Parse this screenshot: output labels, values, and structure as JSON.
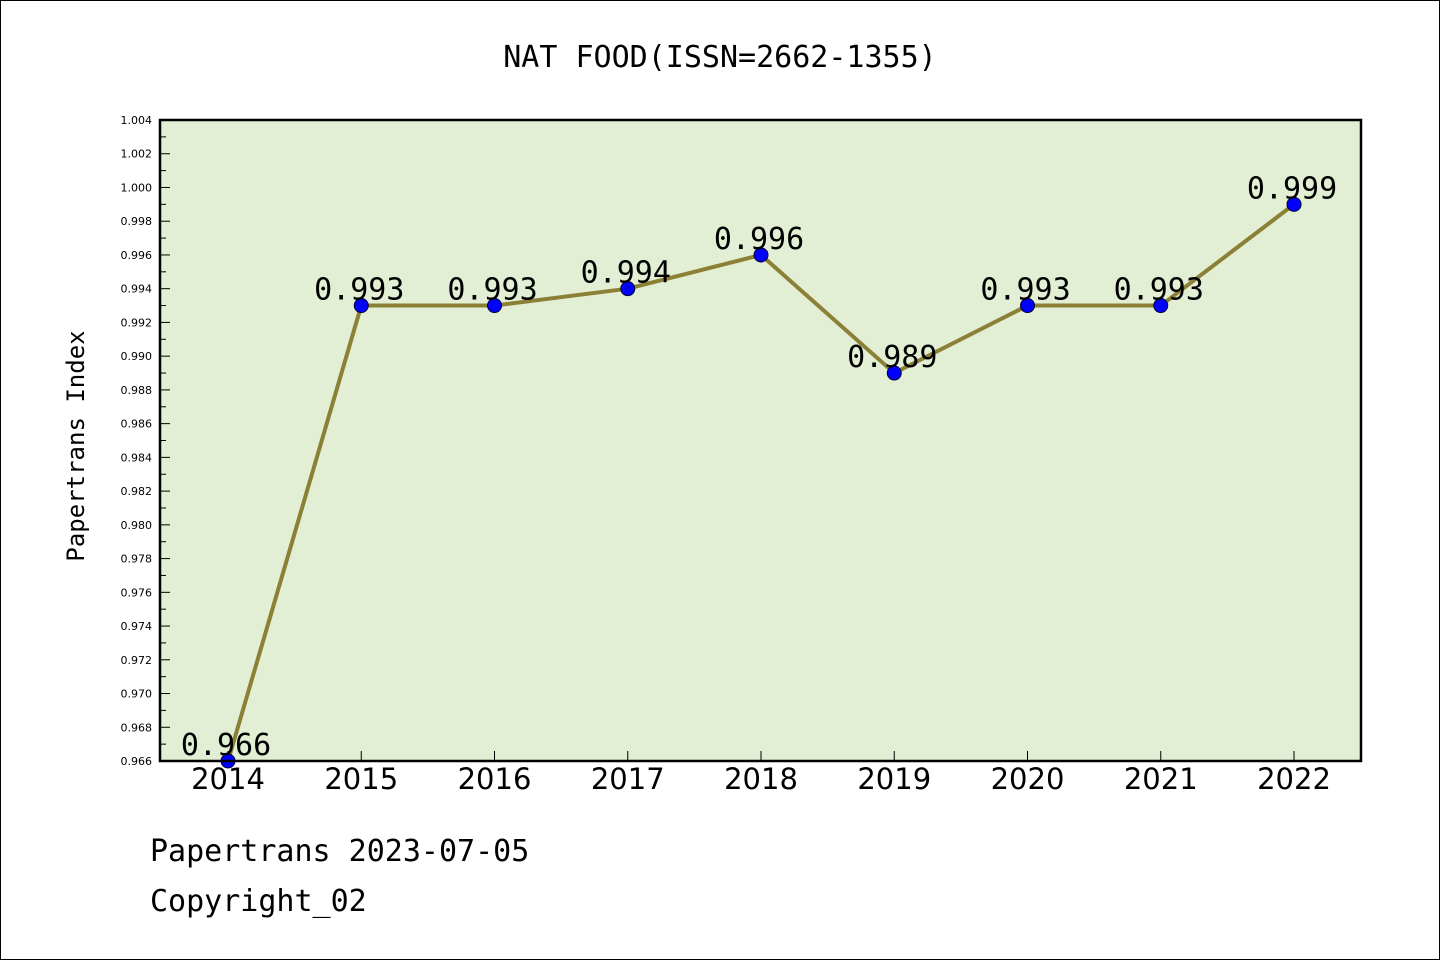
{
  "chart_data": {
    "type": "line",
    "title": "NAT FOOD(ISSN=2662-1355)",
    "ylabel": "Papertrans Index",
    "xlabel": "",
    "categories": [
      "2014",
      "2015",
      "2016",
      "2017",
      "2018",
      "2019",
      "2020",
      "2021",
      "2022"
    ],
    "values": [
      0.966,
      0.993,
      0.993,
      0.994,
      0.996,
      0.989,
      0.993,
      0.993,
      0.999
    ],
    "data_labels": [
      "0.966",
      "0.993",
      "0.993",
      "0.994",
      "0.996",
      "0.989",
      "0.993",
      "0.993",
      "0.999"
    ],
    "ylim": [
      0.966,
      1.004
    ],
    "yticks": [
      "0.966",
      "0.968",
      "0.970",
      "0.972",
      "0.974",
      "0.976",
      "0.978",
      "0.980",
      "0.982",
      "0.984",
      "0.986",
      "0.988",
      "0.990",
      "0.992",
      "0.994",
      "0.996",
      "0.998",
      "1.000",
      "1.002",
      "1.004"
    ],
    "grid": false,
    "line_color": "#8b8035",
    "marker_color": "#0000ff",
    "plot_background": "#e2efd4"
  },
  "footer": {
    "source": "Papertrans 2023-07-05",
    "copyright": "Copyright_02"
  }
}
